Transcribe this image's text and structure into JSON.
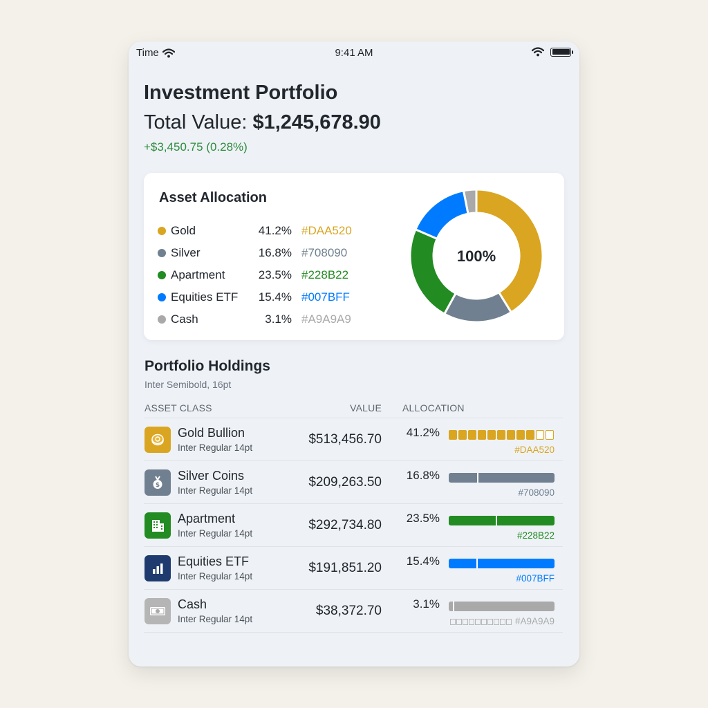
{
  "status_bar": {
    "carrier": "Time",
    "time": "9:41 AM"
  },
  "header": {
    "title": "Investment Portfolio",
    "total_label": "Total Value:",
    "total_value": "$1,245,678.90",
    "change": "+$3,450.75 (0.28%)"
  },
  "allocation": {
    "title": "Asset Allocation",
    "center_label": "100%",
    "items": [
      {
        "name": "Gold",
        "pct": "41.2%",
        "hex": "#DAA520",
        "value": 41.2
      },
      {
        "name": "Silver",
        "pct": "16.8%",
        "hex": "#708090",
        "value": 16.8
      },
      {
        "name": "Apartment",
        "pct": "23.5%",
        "hex": "#228B22",
        "value": 23.5
      },
      {
        "name": "Equities ETF",
        "pct": "15.4%",
        "hex": "#007BFF",
        "value": 15.4
      },
      {
        "name": "Cash",
        "pct": "3.1%",
        "hex": "#A9A9A9",
        "value": 3.1
      }
    ]
  },
  "holdings": {
    "title": "Portfolio Holdings",
    "subtitle": "Inter Semibold, 16pt",
    "columns": {
      "asset": "ASSET CLASS",
      "value": "VALUE",
      "allocation": "ALLOCATION"
    },
    "rows": [
      {
        "name": "Gold Bullion",
        "sub": "Inter Regular 14pt",
        "value": "$513,456.70",
        "pct": "41.2%",
        "hex": "#DAA520",
        "icon": "gold-coin-icon"
      },
      {
        "name": "Silver Coins",
        "sub": "Inter Regular 14pt",
        "value": "$209,263.50",
        "pct": "16.8%",
        "hex": "#708090",
        "icon": "silver-medal-icon"
      },
      {
        "name": "Apartment",
        "sub": "Inter Regular 14pt",
        "value": "$292,734.80",
        "pct": "23.5%",
        "hex": "#228B22",
        "icon": "building-icon"
      },
      {
        "name": "Equities ETF",
        "sub": "Inter Regular 14pt",
        "value": "$191,851.20",
        "pct": "15.4%",
        "hex": "#007BFF",
        "icon": "bar-chart-icon"
      },
      {
        "name": "Cash",
        "sub": "Inter Regular 14pt",
        "value": "$38,372.70",
        "pct": "3.1%",
        "hex": "#A9A9A9",
        "icon": "cash-icon"
      }
    ]
  }
}
